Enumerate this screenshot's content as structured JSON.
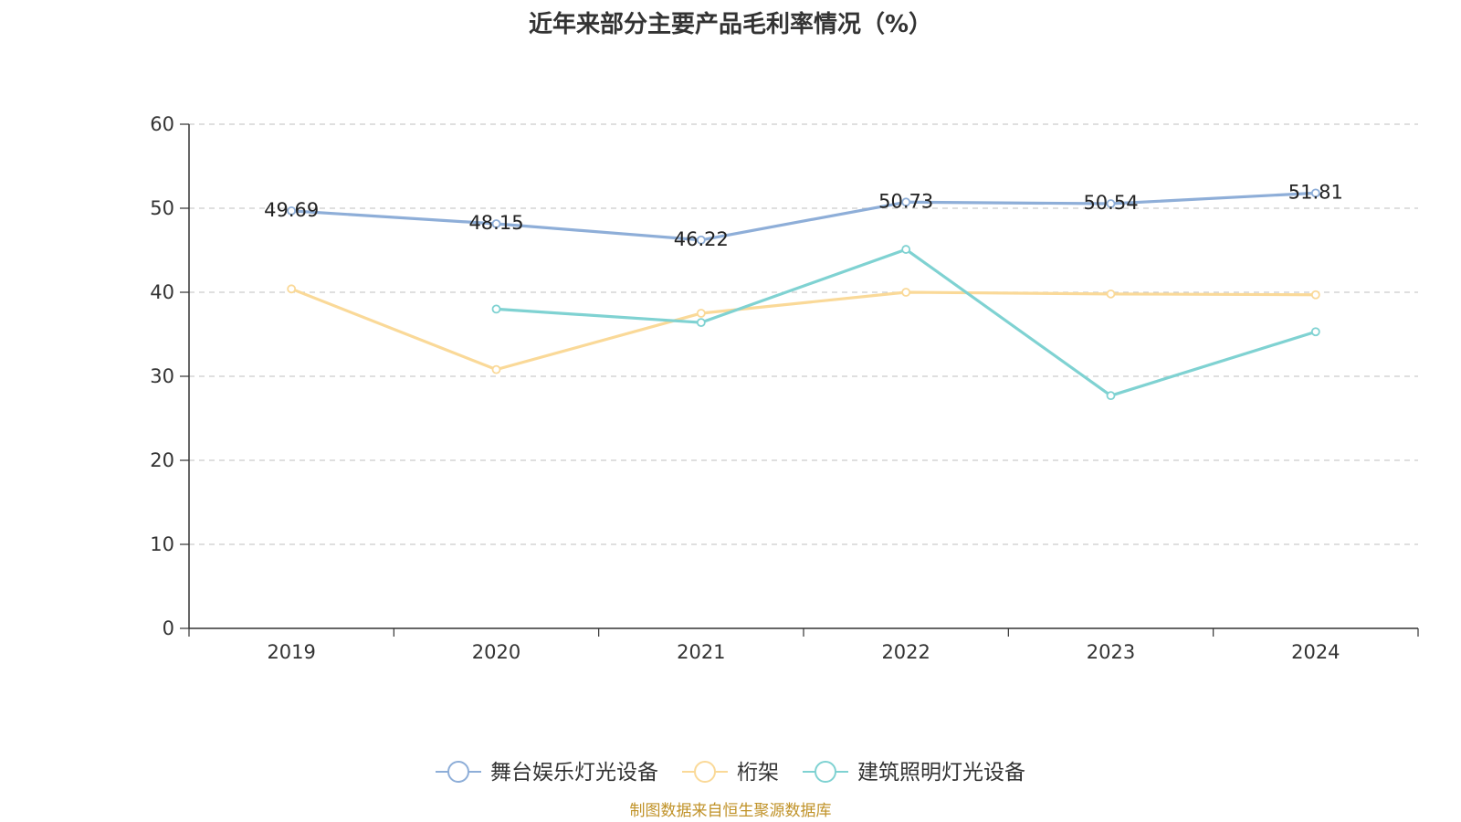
{
  "chart_data": {
    "type": "line",
    "title": "近年来部分主要产品毛利率情况（%）",
    "xlabel": "",
    "ylabel": "",
    "categories": [
      "2019",
      "2020",
      "2021",
      "2022",
      "2023",
      "2024"
    ],
    "ylim": [
      0,
      60
    ],
    "yticks": [
      0,
      10,
      20,
      30,
      40,
      50,
      60
    ],
    "grid": true,
    "legend_position": "bottom",
    "series": [
      {
        "name": "舞台娱乐灯光设备",
        "color": "#8eaed8",
        "values": [
          49.69,
          48.15,
          46.22,
          50.73,
          50.54,
          51.81
        ],
        "labels": [
          "49.69",
          "48.15",
          "46.22",
          "50.73",
          "50.54",
          "51.81"
        ]
      },
      {
        "name": "桁架",
        "color": "#fad998",
        "values": [
          40.4,
          30.8,
          37.5,
          40.0,
          39.8,
          39.7
        ]
      },
      {
        "name": "建筑照明灯光设备",
        "color": "#7fd2d2",
        "values": [
          null,
          38.0,
          36.4,
          45.1,
          27.7,
          35.3
        ]
      }
    ]
  },
  "footer": {
    "source": "制图数据来自恒生聚源数据库"
  }
}
